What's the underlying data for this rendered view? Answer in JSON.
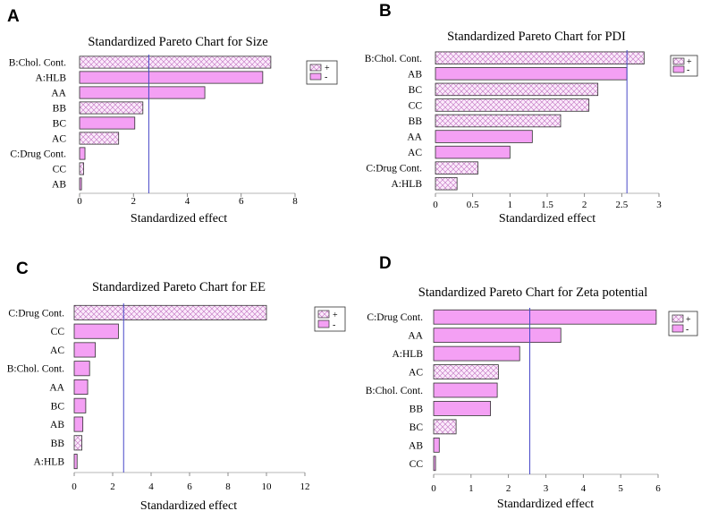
{
  "colors": {
    "fill": "#f4a0f4",
    "hatch": "#c070c0",
    "reference": "#4848c8",
    "axis": "#707070",
    "border": "#303030"
  },
  "legend_labels": {
    "positive": "+",
    "negative": "-"
  },
  "chart_data": [
    {
      "panel": "A",
      "type": "bar",
      "orientation": "horizontal",
      "title": "Standardized Pareto Chart for Size",
      "xlabel": "Standardized effect",
      "ylabel": "",
      "categories": [
        "B:Chol. Cont.",
        "A:HLB",
        "AA",
        "BB",
        "BC",
        "AC",
        "C:Drug Cont.",
        "CC",
        "AB"
      ],
      "values": [
        7.1,
        6.8,
        4.65,
        2.35,
        2.05,
        1.45,
        0.2,
        0.15,
        0.07
      ],
      "signs": [
        "+",
        "-",
        "-",
        "+",
        "-",
        "+",
        "-",
        "+",
        "-"
      ],
      "xlim": [
        0,
        8
      ],
      "xticks": [
        0,
        2,
        4,
        6,
        8
      ],
      "reference_line": 2.57,
      "legend": [
        "+",
        "-"
      ],
      "legend_position": "top-right"
    },
    {
      "panel": "B",
      "type": "bar",
      "orientation": "horizontal",
      "title": "Standardized Pareto Chart for PDI",
      "xlabel": "Standardized effect",
      "ylabel": "",
      "categories": [
        "B:Chol. Cont.",
        "AB",
        "BC",
        "CC",
        "BB",
        "AA",
        "AC",
        "C:Drug Cont.",
        "A:HLB"
      ],
      "values": [
        2.8,
        2.57,
        2.18,
        2.06,
        1.68,
        1.3,
        1.0,
        0.57,
        0.29
      ],
      "signs": [
        "+",
        "-",
        "+",
        "+",
        "+",
        "-",
        "-",
        "+",
        "+"
      ],
      "xlim": [
        0,
        3
      ],
      "xticks": [
        0,
        0.5,
        1,
        1.5,
        2,
        2.5,
        3
      ],
      "reference_line": 2.57,
      "legend": [
        "+",
        "-"
      ],
      "legend_position": "top-right"
    },
    {
      "panel": "C",
      "type": "bar",
      "orientation": "horizontal",
      "title": "Standardized Pareto Chart for EE",
      "xlabel": "Standardized effect",
      "ylabel": "",
      "categories": [
        "C:Drug Cont.",
        "CC",
        "AC",
        "B:Chol. Cont.",
        "AA",
        "BC",
        "AB",
        "BB",
        "A:HLB"
      ],
      "values": [
        10.0,
        2.3,
        1.1,
        0.8,
        0.7,
        0.6,
        0.45,
        0.4,
        0.15
      ],
      "signs": [
        "+",
        "-",
        "-",
        "-",
        "-",
        "-",
        "-",
        "+",
        "-"
      ],
      "xlim": [
        0,
        12
      ],
      "xticks": [
        0,
        2,
        4,
        6,
        8,
        10,
        12
      ],
      "reference_line": 2.57,
      "legend": [
        "+",
        "-"
      ],
      "legend_position": "top-right"
    },
    {
      "panel": "D",
      "type": "bar",
      "orientation": "horizontal",
      "title": "Standardized Pareto Chart for Zeta potential",
      "xlabel": "Standardized effect",
      "ylabel": "",
      "categories": [
        "C:Drug Cont.",
        "AA",
        "A:HLB",
        "AC",
        "B:Chol. Cont.",
        "BB",
        "BC",
        "AB",
        "CC"
      ],
      "values": [
        5.95,
        3.4,
        2.3,
        1.73,
        1.7,
        1.52,
        0.6,
        0.15,
        0.05
      ],
      "signs": [
        "-",
        "-",
        "-",
        "+",
        "-",
        "-",
        "+",
        "-",
        "-"
      ],
      "xlim": [
        0,
        6
      ],
      "xticks": [
        0,
        1,
        2,
        3,
        4,
        5,
        6
      ],
      "reference_line": 2.57,
      "legend": [
        "+",
        "-"
      ],
      "legend_position": "top-right"
    }
  ]
}
